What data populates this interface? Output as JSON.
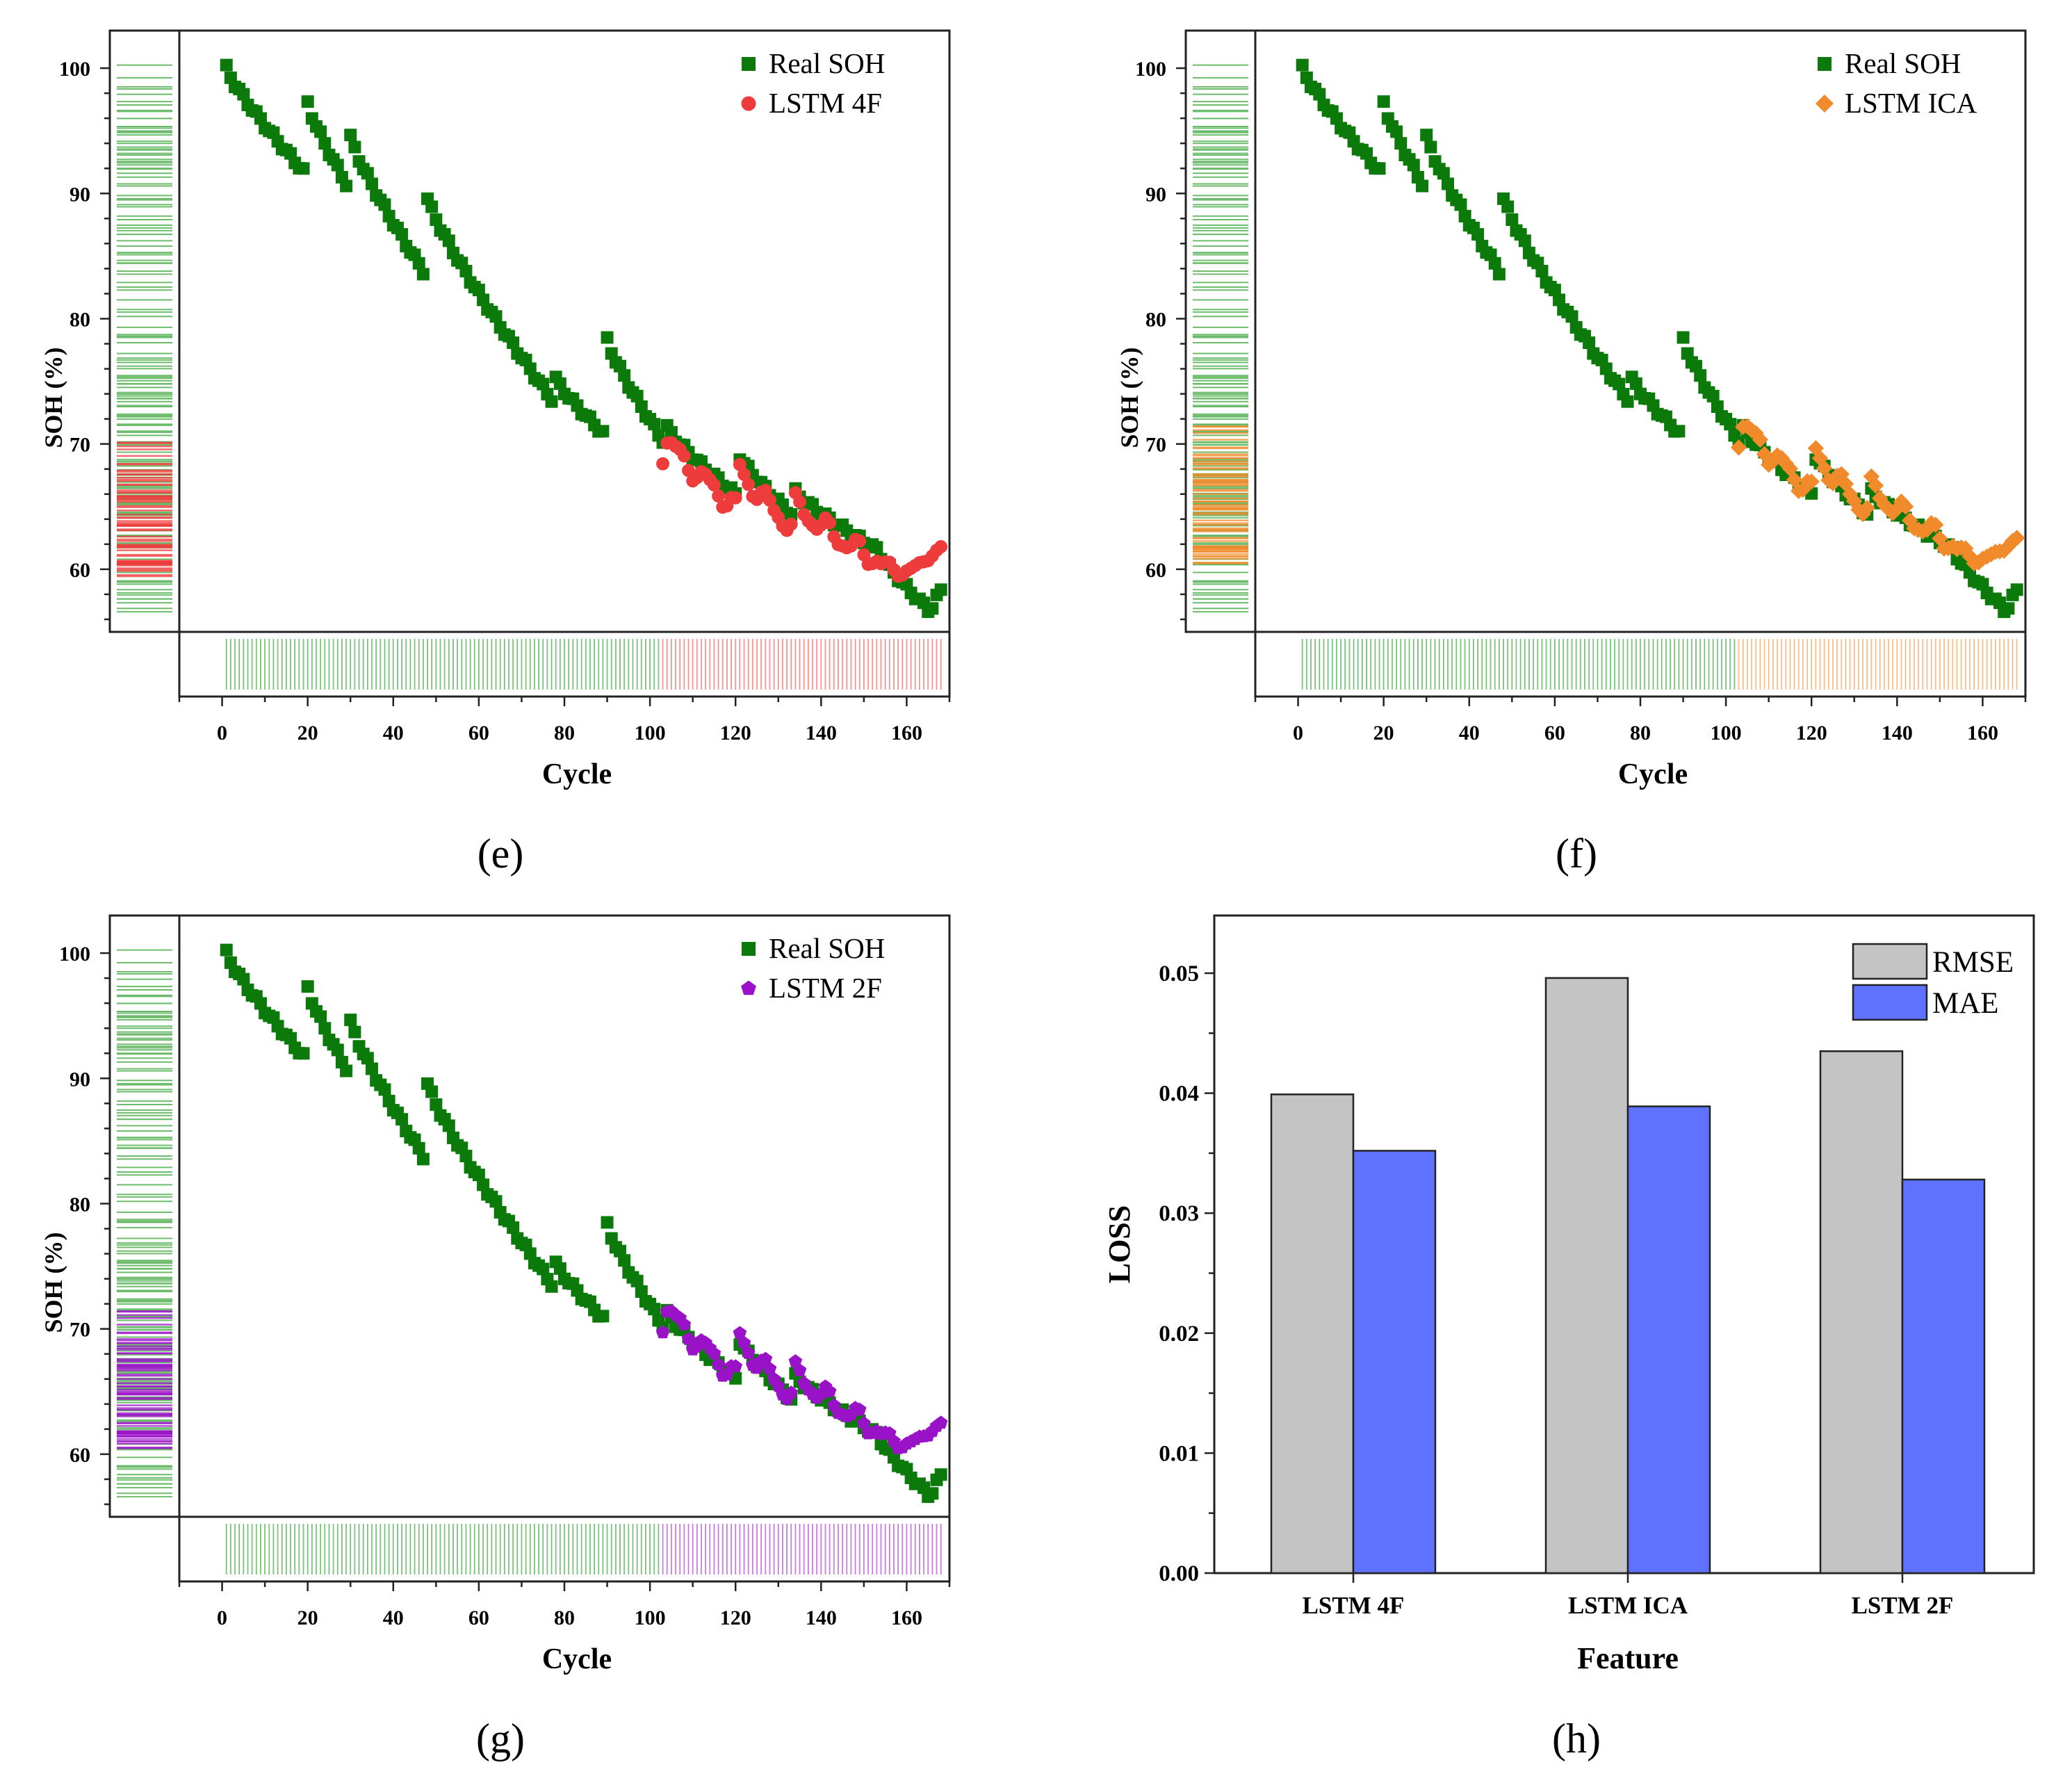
{
  "colors": {
    "real": "#0b7a0b",
    "real_rug": "#6dbb6d",
    "lstm4f": "#ee3b3b",
    "lstmica": "#f08a2a",
    "lstm2f": "#9a12c8",
    "rmse": "#c4c4c4",
    "mae": "#5f72ff"
  },
  "panel_labels": [
    "(e)",
    "(f)",
    "(g)",
    "(h)"
  ],
  "chart_data": [
    {
      "type": "scatter",
      "panel": "(e)",
      "xlabel": "Cycle",
      "ylabel": "SOH (%)",
      "xlim": [
        -10,
        170
      ],
      "ylim": [
        55,
        103
      ],
      "xticks": [
        "0",
        "20",
        "40",
        "60",
        "80",
        "100",
        "120",
        "140",
        "160"
      ],
      "yticks": [
        "60",
        "70",
        "80",
        "90",
        "100"
      ],
      "marginal_rugs": true,
      "legend": "top-right",
      "series": [
        {
          "name": "Real SOH",
          "marker": "square",
          "color": "#0b7a0b",
          "x_range": [
            1,
            168
          ]
        },
        {
          "name": "LSTM 4F",
          "marker": "circle",
          "color": "#ee3b3b",
          "x_range": [
            103,
            168
          ],
          "end_value": 61.8,
          "bias": -1.0
        }
      ]
    },
    {
      "type": "scatter",
      "panel": "(f)",
      "xlabel": "Cycle",
      "ylabel": "SOH (%)",
      "xlim": [
        -10,
        170
      ],
      "ylim": [
        55,
        103
      ],
      "xticks": [
        "0",
        "20",
        "40",
        "60",
        "80",
        "100",
        "120",
        "140",
        "160"
      ],
      "yticks": [
        "60",
        "70",
        "80",
        "90",
        "100"
      ],
      "marginal_rugs": true,
      "legend": "top-right",
      "series": [
        {
          "name": "Real SOH",
          "marker": "square",
          "color": "#0b7a0b",
          "x_range": [
            1,
            168
          ]
        },
        {
          "name": "LSTM ICA",
          "marker": "diamond",
          "color": "#f08a2a",
          "x_range": [
            103,
            168
          ],
          "end_value": 62.5,
          "bias": 0.3
        }
      ]
    },
    {
      "type": "scatter",
      "panel": "(g)",
      "xlabel": "Cycle",
      "ylabel": "SOH (%)",
      "xlim": [
        -10,
        170
      ],
      "ylim": [
        55,
        103
      ],
      "xticks": [
        "0",
        "20",
        "40",
        "60",
        "80",
        "100",
        "120",
        "140",
        "160"
      ],
      "yticks": [
        "60",
        "70",
        "80",
        "90",
        "100"
      ],
      "marginal_rugs": true,
      "legend": "top-right",
      "series": [
        {
          "name": "Real SOH",
          "marker": "square",
          "color": "#0b7a0b",
          "x_range": [
            1,
            168
          ]
        },
        {
          "name": "LSTM 2F",
          "marker": "pentagon",
          "color": "#9a12c8",
          "x_range": [
            103,
            168
          ],
          "end_value": 62.5,
          "bias": 0.3
        }
      ]
    },
    {
      "type": "bar",
      "panel": "(h)",
      "xlabel": "Feature",
      "ylabel": "LOSS",
      "categories": [
        "LSTM 4F",
        "LSTM ICA",
        "LSTM 2F"
      ],
      "ylim": [
        0,
        0.055
      ],
      "yticks": [
        "0.00",
        "0.01",
        "0.02",
        "0.03",
        "0.04",
        "0.05"
      ],
      "legend": "top-right",
      "series": [
        {
          "name": "RMSE",
          "color": "#c4c4c4",
          "values": [
            0.0399,
            0.0496,
            0.0435
          ]
        },
        {
          "name": "MAE",
          "color": "#5f72ff",
          "values": [
            0.0352,
            0.0389,
            0.0328
          ]
        }
      ]
    }
  ]
}
